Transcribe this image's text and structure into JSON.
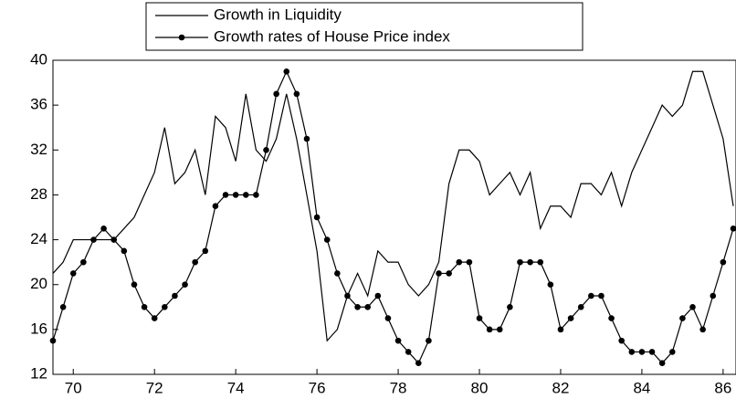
{
  "chart_data": {
    "type": "line",
    "x": [
      69.5,
      69.75,
      70,
      70.25,
      70.5,
      70.75,
      71,
      71.25,
      71.5,
      71.75,
      72,
      72.25,
      72.5,
      72.75,
      73,
      73.25,
      73.5,
      73.75,
      74,
      74.25,
      74.5,
      74.75,
      75,
      75.25,
      75.5,
      75.75,
      76,
      76.25,
      76.5,
      76.75,
      77,
      77.25,
      77.5,
      77.75,
      78,
      78.25,
      78.5,
      78.75,
      79,
      79.25,
      79.5,
      79.75,
      80,
      80.25,
      80.5,
      80.75,
      81,
      81.25,
      81.5,
      81.75,
      82,
      82.25,
      82.5,
      82.75,
      83,
      83.25,
      83.5,
      83.75,
      84,
      84.25,
      84.5,
      84.75,
      85,
      85.25,
      85.5,
      85.75,
      86,
      86.25
    ],
    "series": [
      {
        "name": "Growth in Liquidity",
        "color": "#000000",
        "marker": false,
        "values": [
          21,
          22,
          24,
          24,
          24,
          24,
          24,
          25,
          26,
          28,
          30,
          34,
          29,
          30,
          32,
          28,
          35,
          34,
          31,
          37,
          32,
          31,
          33,
          37,
          33,
          28,
          23,
          15,
          16,
          19,
          21,
          19,
          23,
          22,
          22,
          20,
          19,
          20,
          22,
          29,
          32,
          32,
          31,
          28,
          29,
          30,
          28,
          30,
          25,
          27,
          27,
          26,
          29,
          29,
          28,
          30,
          27,
          30,
          32,
          34,
          36,
          35,
          36,
          39,
          39,
          36,
          33,
          27
        ]
      },
      {
        "name": "Growth rates of House Price index",
        "color": "#000000",
        "marker": true,
        "values": [
          15,
          18,
          21,
          22,
          24,
          25,
          24,
          23,
          20,
          18,
          17,
          18,
          19,
          20,
          22,
          23,
          27,
          28,
          28,
          28,
          28,
          32,
          37,
          39,
          37,
          33,
          26,
          24,
          21,
          19,
          18,
          18,
          19,
          17,
          15,
          14,
          13,
          15,
          21,
          21,
          22,
          22,
          17,
          16,
          16,
          18,
          22,
          22,
          22,
          20,
          16,
          17,
          18,
          19,
          19,
          17,
          15,
          14,
          14,
          14,
          13,
          14,
          17,
          18,
          16,
          19,
          22,
          25
        ]
      }
    ],
    "xlim": [
      69.5,
      86.25
    ],
    "xticks": [
      70,
      72,
      74,
      76,
      78,
      80,
      82,
      84,
      86
    ],
    "ylim": [
      12,
      40
    ],
    "yticks": [
      12,
      16,
      20,
      24,
      28,
      32,
      36,
      40
    ]
  }
}
